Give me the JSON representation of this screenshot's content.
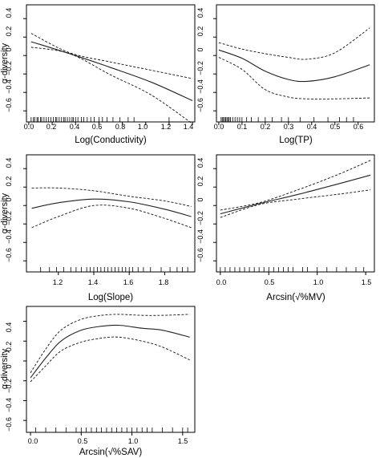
{
  "y_tick_labels": [
    "0.4",
    "0.2",
    "0",
    "−0.2",
    "−0.4",
    "−0.6"
  ],
  "chart_data": [
    {
      "type": "line",
      "xlabel": "Log(Conductivity)",
      "ylabel": "α-diversity",
      "xlim": [
        -0.02,
        1.42
      ],
      "ylim": [
        -0.72,
        0.55
      ],
      "xticks": [
        0.0,
        0.2,
        0.4,
        0.6,
        0.8,
        1.0,
        1.2,
        1.4
      ],
      "xtick_labels": [
        "0.0",
        "0.2",
        "0.4",
        "0.6",
        "0.8",
        "1.0",
        "1.2",
        "1.4"
      ],
      "yticks": [
        0.4,
        0.2,
        0,
        -0.2,
        -0.4,
        -0.6
      ],
      "series": [
        {
          "role": "fit",
          "x": [
            0.02,
            0.35,
            0.7,
            1.05,
            1.4
          ],
          "y": [
            0.15,
            0.02,
            -0.13,
            -0.29,
            -0.49
          ]
        },
        {
          "role": "upper",
          "x": [
            0.02,
            0.35,
            0.7,
            1.05,
            1.4
          ],
          "y": [
            0.24,
            0.03,
            -0.07,
            -0.16,
            -0.25
          ]
        },
        {
          "role": "lower",
          "x": [
            0.02,
            0.35,
            0.7,
            1.05,
            1.4
          ],
          "y": [
            0.09,
            0.02,
            -0.21,
            -0.43,
            -0.74
          ]
        }
      ],
      "rug": [
        0.02,
        0.04,
        0.05,
        0.07,
        0.08,
        0.1,
        0.11,
        0.13,
        0.15,
        0.17,
        0.19,
        0.21,
        0.23,
        0.24,
        0.26,
        0.28,
        0.3,
        0.31,
        0.33,
        0.35,
        0.37,
        0.38,
        0.4,
        0.42,
        0.45,
        0.47,
        0.5,
        0.53,
        0.56,
        0.6,
        0.63,
        0.67,
        0.72,
        0.78,
        0.85,
        0.9,
        1.2
      ]
    },
    {
      "type": "line",
      "xlabel": "Log(TP)",
      "ylabel": "",
      "xlim": [
        -0.01,
        0.67
      ],
      "ylim": [
        -0.72,
        0.55
      ],
      "xticks": [
        0.0,
        0.1,
        0.2,
        0.3,
        0.4,
        0.5,
        0.6
      ],
      "xtick_labels": [
        "0.0",
        "0.1",
        "0.2",
        "0.3",
        "0.4",
        "0.5",
        "0.6"
      ],
      "yticks": [
        0.4,
        0.2,
        0,
        -0.2,
        -0.4,
        -0.6
      ],
      "series": [
        {
          "role": "fit",
          "x": [
            0.0,
            0.1,
            0.2,
            0.3,
            0.38,
            0.5,
            0.65
          ],
          "y": [
            0.06,
            -0.03,
            -0.17,
            -0.26,
            -0.28,
            -0.23,
            -0.1
          ]
        },
        {
          "role": "upper",
          "x": [
            0.0,
            0.1,
            0.2,
            0.3,
            0.38,
            0.5,
            0.65
          ],
          "y": [
            0.14,
            0.07,
            0.02,
            -0.02,
            -0.04,
            0.03,
            0.3
          ]
        },
        {
          "role": "lower",
          "x": [
            0.0,
            0.1,
            0.2,
            0.3,
            0.38,
            0.5,
            0.65
          ],
          "y": [
            -0.02,
            -0.15,
            -0.37,
            -0.45,
            -0.47,
            -0.47,
            -0.46
          ]
        }
      ],
      "rug": [
        0.01,
        0.015,
        0.02,
        0.025,
        0.03,
        0.035,
        0.04,
        0.045,
        0.05,
        0.06,
        0.07,
        0.08,
        0.09,
        0.1,
        0.12,
        0.14,
        0.17,
        0.2,
        0.23,
        0.27,
        0.3,
        0.35,
        0.41,
        0.47,
        0.52,
        0.55,
        0.58
      ]
    },
    {
      "type": "line",
      "xlabel": "Log(Slope)",
      "ylabel": "α-diversity",
      "xlim": [
        1.02,
        1.97
      ],
      "ylim": [
        -0.72,
        0.55
      ],
      "xticks": [
        1.2,
        1.4,
        1.6,
        1.8
      ],
      "xtick_labels": [
        "1.2",
        "1.4",
        "1.6",
        "1.8"
      ],
      "yticks": [
        0.4,
        0.2,
        0,
        -0.2,
        -0.4,
        -0.6
      ],
      "series": [
        {
          "role": "fit",
          "x": [
            1.05,
            1.2,
            1.4,
            1.6,
            1.8,
            1.95
          ],
          "y": [
            -0.03,
            0.03,
            0.07,
            0.04,
            -0.04,
            -0.12
          ]
        },
        {
          "role": "upper",
          "x": [
            1.05,
            1.2,
            1.4,
            1.6,
            1.8,
            1.95
          ],
          "y": [
            0.19,
            0.19,
            0.16,
            0.1,
            0.05,
            -0.01
          ]
        },
        {
          "role": "lower",
          "x": [
            1.05,
            1.2,
            1.4,
            1.6,
            1.8,
            1.95
          ],
          "y": [
            -0.24,
            -0.12,
            0.0,
            -0.03,
            -0.14,
            -0.24
          ]
        }
      ],
      "rug": [
        1.1,
        1.15,
        1.19,
        1.23,
        1.27,
        1.3,
        1.33,
        1.36,
        1.38,
        1.4,
        1.42,
        1.44,
        1.46,
        1.48,
        1.5,
        1.52,
        1.54,
        1.56,
        1.58,
        1.6,
        1.62,
        1.65,
        1.68,
        1.72,
        1.78,
        1.83,
        1.87,
        1.9,
        1.93
      ]
    },
    {
      "type": "line",
      "xlabel": "Arcsin(√%MV)",
      "ylabel": "",
      "xlim": [
        -0.04,
        1.59
      ],
      "ylim": [
        -0.72,
        0.55
      ],
      "xticks": [
        0.0,
        0.5,
        1.0,
        1.5
      ],
      "xtick_labels": [
        "0.0",
        "0.5",
        "1.0",
        "1.5"
      ],
      "yticks": [
        0.4,
        0.2,
        0,
        -0.2,
        -0.4,
        -0.6
      ],
      "series": [
        {
          "role": "fit",
          "x": [
            0.0,
            0.4,
            0.8,
            1.2,
            1.55
          ],
          "y": [
            -0.09,
            0.02,
            0.12,
            0.23,
            0.33
          ]
        },
        {
          "role": "upper",
          "x": [
            0.0,
            0.4,
            0.8,
            1.2,
            1.55
          ],
          "y": [
            -0.05,
            0.03,
            0.17,
            0.33,
            0.49
          ]
        },
        {
          "role": "lower",
          "x": [
            0.0,
            0.4,
            0.8,
            1.2,
            1.55
          ],
          "y": [
            -0.13,
            0.01,
            0.07,
            0.12,
            0.17
          ]
        }
      ],
      "rug": [
        0.0,
        0.05,
        0.1,
        0.15,
        0.2,
        0.25,
        0.3,
        0.35,
        0.4,
        0.45,
        0.5,
        0.55,
        0.6,
        0.65,
        0.7,
        0.75,
        0.85,
        0.9,
        1.0,
        1.1,
        1.2,
        1.3,
        1.4,
        1.48
      ]
    },
    {
      "type": "line",
      "xlabel": "Arcsin(√%SAV)",
      "ylabel": "α-diversity",
      "xlim": [
        -0.04,
        1.62
      ],
      "ylim": [
        -0.72,
        0.55
      ],
      "xticks": [
        0.0,
        0.5,
        1.0,
        1.5
      ],
      "xtick_labels": [
        "0.0",
        "0.5",
        "1.0",
        "1.5"
      ],
      "yticks": [
        0.4,
        0.2,
        0,
        -0.2,
        -0.4,
        -0.6
      ],
      "series": [
        {
          "role": "fit",
          "x": [
            0.0,
            0.15,
            0.3,
            0.5,
            0.7,
            0.87,
            1.1,
            1.3,
            1.57
          ],
          "y": [
            -0.17,
            0.03,
            0.2,
            0.31,
            0.35,
            0.36,
            0.33,
            0.31,
            0.24
          ]
        },
        {
          "role": "upper",
          "x": [
            0.0,
            0.15,
            0.3,
            0.5,
            0.7,
            0.87,
            1.1,
            1.3,
            1.57
          ],
          "y": [
            -0.12,
            0.12,
            0.31,
            0.42,
            0.46,
            0.47,
            0.46,
            0.46,
            0.47
          ]
        },
        {
          "role": "lower",
          "x": [
            0.0,
            0.15,
            0.3,
            0.5,
            0.7,
            0.87,
            1.1,
            1.3,
            1.57
          ],
          "y": [
            -0.21,
            -0.05,
            0.1,
            0.19,
            0.23,
            0.24,
            0.2,
            0.14,
            0.01
          ]
        }
      ],
      "rug": [
        0.05,
        0.15,
        0.25,
        0.35,
        0.45,
        0.5,
        0.55,
        0.6,
        0.65,
        0.7,
        0.75,
        0.8,
        0.85,
        0.9,
        0.95,
        1.0,
        1.05,
        1.1,
        1.15,
        1.2,
        1.3,
        1.4,
        1.5,
        1.55
      ]
    }
  ]
}
